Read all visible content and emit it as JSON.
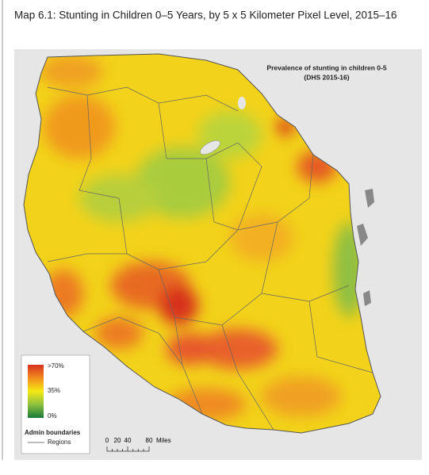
{
  "header": {
    "title": "Map 6.1: Stunting in Children 0–5 Years, by 5 x 5 Kilometer Pixel Level, 2015–16"
  },
  "map": {
    "title": "Prevalence of stunting in children 0-5",
    "subtitle": "(DHS 2015-16)"
  },
  "legend": {
    "high": ">70%",
    "mid": "35%",
    "low": "0%",
    "boundaries_title": "Admin boundaries",
    "boundaries_item": "Regions"
  },
  "scale": {
    "labels": [
      "0",
      "20",
      "40",
      "80"
    ],
    "unit": "Miles"
  }
}
